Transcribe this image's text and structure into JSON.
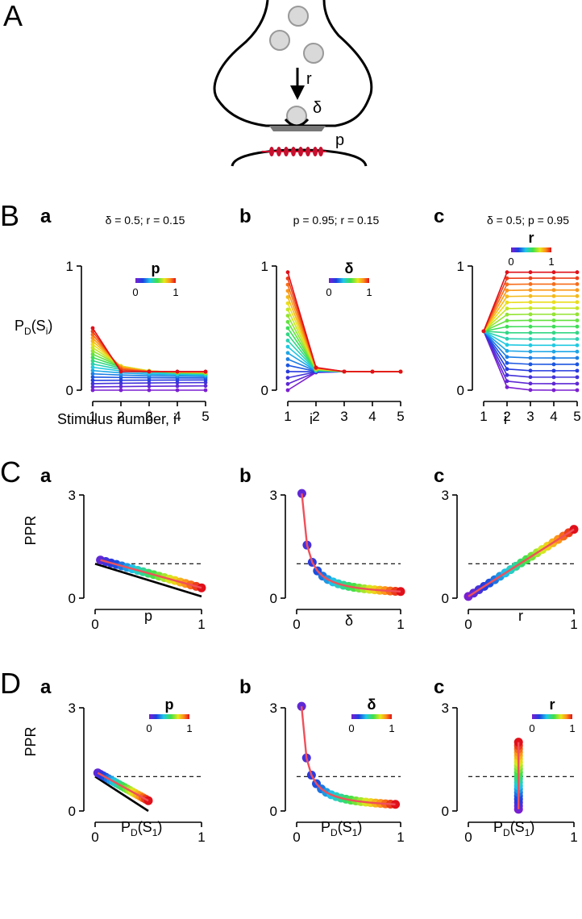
{
  "panel_labels": {
    "A": "A",
    "B": "B",
    "C": "C",
    "D": "D"
  },
  "sub_labels": [
    "a",
    "b",
    "c"
  ],
  "diagram": {
    "r_label": "r",
    "delta_label": "δ",
    "p_label": "p"
  },
  "titles": {
    "Ba": "δ  = 0.5; r = 0.15",
    "Bb": "p = 0.95; r = 0.15",
    "Bc": "δ = 0.5; p = 0.95"
  },
  "axis_labels": {
    "B_y": "P_D(S_i)",
    "B_x_a": "Stimulus number, i",
    "B_x": "i",
    "C_y": "PPR",
    "C_x": [
      "p",
      "δ",
      "r"
    ],
    "D_y": "PPR",
    "D_x": "P_D(S_1)"
  },
  "colorbars": {
    "Ba": {
      "name": "p",
      "min": "0",
      "max": "1"
    },
    "Bb": {
      "name": "δ",
      "min": "0",
      "max": "1"
    },
    "Bc": {
      "name": "r",
      "min": "0",
      "max": "1"
    },
    "Da": {
      "name": "p",
      "min": "0",
      "max": "1"
    },
    "Db": {
      "name": "δ",
      "min": "0",
      "max": "1"
    },
    "Dc": {
      "name": "r",
      "min": "0",
      "max": "1"
    }
  },
  "chart_data": [
    {
      "id": "Ba",
      "type": "line",
      "title": "δ  = 0.5; r = 0.15",
      "xlabel": "Stimulus number, i",
      "ylabel": "P_D(S_i)",
      "x": [
        1,
        2,
        3,
        4,
        5
      ],
      "xlim": [
        1,
        5
      ],
      "ylim": [
        0,
        1
      ],
      "xticks": [
        "1",
        "2",
        "3",
        "4",
        "5"
      ],
      "yticks": [
        "0",
        "1"
      ],
      "colorbar": {
        "variable": "p",
        "range": [
          0,
          1
        ]
      },
      "model": {
        "delta": 0.5,
        "r": 0.15,
        "series_parameter": "p",
        "parameter_values": "0 to 1 in 20 steps"
      }
    },
    {
      "id": "Bb",
      "type": "line",
      "title": "p = 0.95; r = 0.15",
      "xlabel": "i",
      "ylabel": "",
      "x": [
        1,
        2,
        3,
        4,
        5
      ],
      "xlim": [
        1,
        5
      ],
      "ylim": [
        0,
        1
      ],
      "xticks": [
        "1",
        "2",
        "3",
        "4",
        "5"
      ],
      "yticks": [
        "0",
        "1"
      ],
      "colorbar": {
        "variable": "δ",
        "range": [
          0,
          1
        ]
      },
      "model": {
        "p": 0.95,
        "r": 0.15,
        "series_parameter": "delta",
        "parameter_values": "0 to 1 in 20 steps"
      }
    },
    {
      "id": "Bc",
      "type": "line",
      "title": "δ = 0.5; p = 0.95",
      "xlabel": "i",
      "ylabel": "",
      "x": [
        1,
        2,
        3,
        4,
        5
      ],
      "xlim": [
        1,
        5
      ],
      "ylim": [
        0,
        1
      ],
      "xticks": [
        "1",
        "2",
        "3",
        "4",
        "5"
      ],
      "yticks": [
        "0",
        "1"
      ],
      "colorbar": {
        "variable": "r",
        "range": [
          0,
          1
        ]
      },
      "model": {
        "delta": 0.5,
        "p": 0.95,
        "series_parameter": "r",
        "parameter_values": "0 to 1 in 20 steps"
      }
    },
    {
      "id": "Ca",
      "type": "scatter",
      "xlabel": "p",
      "ylabel": "PPR",
      "xlim": [
        0,
        1
      ],
      "ylim": [
        0,
        3
      ],
      "xticks": [
        "0",
        "1"
      ],
      "yticks": [
        "0",
        "3"
      ],
      "reference_line": {
        "y": 1,
        "style": "dashed"
      },
      "black_line": {
        "x": [
          0,
          1
        ],
        "y": [
          1.0,
          0.05
        ]
      },
      "param_values": [
        0.05,
        0.1,
        0.15,
        0.2,
        0.25,
        0.3,
        0.35,
        0.4,
        0.45,
        0.5,
        0.55,
        0.6,
        0.65,
        0.7,
        0.75,
        0.8,
        0.85,
        0.9,
        0.95,
        1.0
      ]
    },
    {
      "id": "Cb",
      "type": "scatter",
      "xlabel": "δ",
      "ylabel": "",
      "xlim": [
        0,
        1
      ],
      "ylim": [
        0,
        3
      ],
      "xticks": [
        "0",
        "1"
      ],
      "yticks": [
        "0",
        "3"
      ],
      "reference_line": {
        "y": 1,
        "style": "dashed"
      },
      "param_values": [
        0.05,
        0.1,
        0.15,
        0.2,
        0.25,
        0.3,
        0.35,
        0.4,
        0.45,
        0.5,
        0.55,
        0.6,
        0.65,
        0.7,
        0.75,
        0.8,
        0.85,
        0.9,
        0.95,
        1.0
      ]
    },
    {
      "id": "Cc",
      "type": "scatter",
      "xlabel": "r",
      "ylabel": "",
      "xlim": [
        0,
        1
      ],
      "ylim": [
        0,
        3
      ],
      "xticks": [
        "0",
        "1"
      ],
      "yticks": [
        "0",
        "3"
      ],
      "reference_line": {
        "y": 1,
        "style": "dashed"
      },
      "black_line": {
        "x": [
          0,
          1
        ],
        "y": [
          0,
          2
        ]
      },
      "param_values": [
        0.0,
        0.05,
        0.1,
        0.15,
        0.2,
        0.25,
        0.3,
        0.35,
        0.4,
        0.45,
        0.5,
        0.55,
        0.6,
        0.65,
        0.7,
        0.75,
        0.8,
        0.85,
        0.9,
        0.95,
        1.0
      ]
    },
    {
      "id": "Da",
      "type": "scatter",
      "xlabel": "P_D(S_1)",
      "ylabel": "PPR",
      "xlim": [
        0,
        1
      ],
      "ylim": [
        0,
        3
      ],
      "xticks": [
        "0",
        "1"
      ],
      "yticks": [
        "0",
        "3"
      ],
      "reference_line": {
        "y": 1,
        "style": "dashed"
      },
      "black_line": {
        "x": [
          0,
          0.5
        ],
        "y": [
          1.0,
          0.0
        ]
      },
      "colorbar": {
        "variable": "p",
        "range": [
          0,
          1
        ]
      },
      "param_values": [
        0.05,
        0.1,
        0.15,
        0.2,
        0.25,
        0.3,
        0.35,
        0.4,
        0.45,
        0.5,
        0.55,
        0.6,
        0.65,
        0.7,
        0.75,
        0.8,
        0.85,
        0.9,
        0.95,
        1.0
      ]
    },
    {
      "id": "Db",
      "type": "scatter",
      "xlabel": "P_D(S_1)",
      "ylabel": "",
      "xlim": [
        0,
        1
      ],
      "ylim": [
        0,
        3
      ],
      "xticks": [
        "0",
        "1"
      ],
      "yticks": [
        "0",
        "3"
      ],
      "reference_line": {
        "y": 1,
        "style": "dashed"
      },
      "colorbar": {
        "variable": "δ",
        "range": [
          0,
          1
        ]
      },
      "param_values": [
        0.05,
        0.1,
        0.15,
        0.2,
        0.25,
        0.3,
        0.35,
        0.4,
        0.45,
        0.5,
        0.55,
        0.6,
        0.65,
        0.7,
        0.75,
        0.8,
        0.85,
        0.9,
        0.95,
        1.0
      ]
    },
    {
      "id": "Dc",
      "type": "scatter",
      "xlabel": "P_D(S_1)",
      "ylabel": "",
      "xlim": [
        0,
        1
      ],
      "ylim": [
        0,
        3
      ],
      "xticks": [
        "0",
        "1"
      ],
      "yticks": [
        "0",
        "3"
      ],
      "reference_line": {
        "y": 1,
        "style": "dashed"
      },
      "colorbar": {
        "variable": "r",
        "range": [
          0,
          1
        ]
      },
      "param_values": [
        0.0,
        0.05,
        0.1,
        0.15,
        0.2,
        0.25,
        0.3,
        0.35,
        0.4,
        0.45,
        0.5,
        0.55,
        0.6,
        0.65,
        0.7,
        0.75,
        0.8,
        0.85,
        0.9,
        0.95,
        1.0
      ]
    }
  ]
}
